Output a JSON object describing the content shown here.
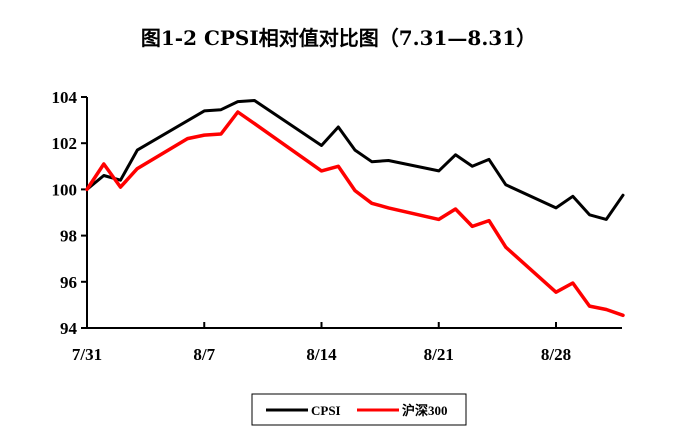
{
  "chart_data": {
    "type": "line",
    "title": "图1-2 CPSI相对值对比图（7.31—8.31）",
    "x_ticks": [
      "7/31",
      "8/7",
      "8/14",
      "8/21",
      "8/28"
    ],
    "x_tick_days": [
      0,
      7,
      14,
      21,
      28
    ],
    "y_ticks": [
      "94",
      "96",
      "98",
      "100",
      "102",
      "104"
    ],
    "ylim": [
      94,
      104
    ],
    "xlim_days": [
      0,
      31
    ],
    "grid": false,
    "legend_position": "bottom-center",
    "series": [
      {
        "name": "CPSI",
        "color": "#000000",
        "points": [
          [
            0,
            100.0
          ],
          [
            1,
            100.6
          ],
          [
            2,
            100.4
          ],
          [
            3,
            101.7
          ],
          [
            7,
            103.4
          ],
          [
            8,
            103.45
          ],
          [
            9,
            103.8
          ],
          [
            10,
            103.85
          ],
          [
            14,
            101.9
          ],
          [
            15,
            102.7
          ],
          [
            16,
            101.7
          ],
          [
            17,
            101.2
          ],
          [
            18,
            101.25
          ],
          [
            21,
            100.8
          ],
          [
            22,
            101.5
          ],
          [
            23,
            101.0
          ],
          [
            24,
            101.3
          ],
          [
            25,
            100.2
          ],
          [
            28,
            99.2
          ],
          [
            29,
            99.7
          ],
          [
            30,
            98.9
          ],
          [
            31,
            98.7
          ],
          [
            32,
            99.75
          ]
        ]
      },
      {
        "name": "沪深300",
        "color": "#ff0000",
        "points": [
          [
            0,
            100.0
          ],
          [
            1,
            101.1
          ],
          [
            2,
            100.1
          ],
          [
            3,
            100.9
          ],
          [
            6,
            102.2
          ],
          [
            7,
            102.35
          ],
          [
            8,
            102.4
          ],
          [
            9,
            103.35
          ],
          [
            10,
            102.85
          ],
          [
            14,
            100.8
          ],
          [
            15,
            101.0
          ],
          [
            16,
            99.95
          ],
          [
            17,
            99.4
          ],
          [
            18,
            99.2
          ],
          [
            21,
            98.7
          ],
          [
            22,
            99.15
          ],
          [
            23,
            98.4
          ],
          [
            24,
            98.65
          ],
          [
            25,
            97.5
          ],
          [
            28,
            95.55
          ],
          [
            29,
            95.95
          ],
          [
            30,
            94.95
          ],
          [
            31,
            94.8
          ],
          [
            32,
            94.55
          ]
        ]
      }
    ]
  }
}
